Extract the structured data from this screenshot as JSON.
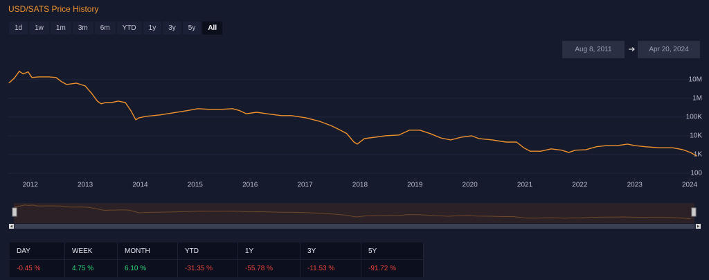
{
  "header": {
    "title": "USD/SATS Price History"
  },
  "range_buttons": [
    {
      "label": "1d",
      "active": false
    },
    {
      "label": "1w",
      "active": false
    },
    {
      "label": "1m",
      "active": false
    },
    {
      "label": "3m",
      "active": false
    },
    {
      "label": "6m",
      "active": false
    },
    {
      "label": "YTD",
      "active": false
    },
    {
      "label": "1y",
      "active": false
    },
    {
      "label": "3y",
      "active": false
    },
    {
      "label": "5y",
      "active": false
    },
    {
      "label": "All",
      "active": true
    }
  ],
  "date_range": {
    "from": "Aug 8, 2011",
    "to": "Apr 20, 2024"
  },
  "chart_data": {
    "type": "line",
    "color": "#f0922b",
    "log_y": true,
    "grid": true,
    "x": [
      2011.61,
      2011.71,
      2011.8,
      2011.87,
      2011.96,
      2012.03,
      2012.15,
      2012.34,
      2012.47,
      2012.57,
      2012.66,
      2012.84,
      2013.0,
      2013.12,
      2013.22,
      2013.29,
      2013.37,
      2013.48,
      2013.6,
      2013.73,
      2013.83,
      2013.92,
      2013.98,
      2014.11,
      2014.36,
      2014.61,
      2014.86,
      2015.05,
      2015.24,
      2015.49,
      2015.68,
      2015.81,
      2015.93,
      2016.12,
      2016.38,
      2016.57,
      2016.75,
      2017.01,
      2017.26,
      2017.49,
      2017.64,
      2017.76,
      2017.89,
      2017.95,
      2018.08,
      2018.27,
      2018.46,
      2018.71,
      2018.9,
      2019.09,
      2019.28,
      2019.47,
      2019.65,
      2019.84,
      2020.03,
      2020.16,
      2020.41,
      2020.66,
      2020.85,
      2020.98,
      2021.1,
      2021.29,
      2021.48,
      2021.67,
      2021.8,
      2021.92,
      2022.11,
      2022.3,
      2022.49,
      2022.68,
      2022.87,
      2023.0,
      2023.19,
      2023.44,
      2023.69,
      2023.88,
      2024.01,
      2024.13
    ],
    "values": [
      6500000,
      12000000,
      28000000,
      20000000,
      26000000,
      13000000,
      14000000,
      14000000,
      13000000,
      7700000,
      5500000,
      6500000,
      4600000,
      1800000,
      710000,
      510000,
      600000,
      600000,
      710000,
      600000,
      220000,
      71000,
      92000,
      110000,
      130000,
      170000,
      220000,
      280000,
      260000,
      260000,
      280000,
      220000,
      150000,
      180000,
      140000,
      120000,
      120000,
      92000,
      60000,
      33000,
      20000,
      13000,
      4600,
      3600,
      7100,
      8400,
      10000,
      11000,
      20000,
      20000,
      13000,
      7700,
      6000,
      8400,
      10000,
      7100,
      6000,
      4600,
      4600,
      2300,
      1500,
      1500,
      2000,
      1700,
      1300,
      1700,
      1800,
      2600,
      3000,
      3000,
      3600,
      3000,
      2600,
      2300,
      2300,
      1800,
      1300,
      840
    ],
    "xlim": [
      2011.6,
      2024.2
    ],
    "xticks": [
      2012,
      2013,
      2014,
      2015,
      2016,
      2017,
      2018,
      2019,
      2020,
      2021,
      2022,
      2023,
      2024
    ],
    "ylim": [
      55,
      70000000
    ],
    "yticks": [
      100,
      {
        "value": 1000,
        "label": "1K"
      },
      {
        "value": 10000,
        "label": "10K"
      },
      {
        "value": 100000,
        "label": "100K"
      },
      {
        "value": 1000000,
        "label": "1M"
      },
      {
        "value": 10000000,
        "label": "10M"
      }
    ]
  },
  "performance_table": {
    "headers": [
      "DAY",
      "WEEK",
      "MONTH",
      "YTD",
      "1Y",
      "3Y",
      "5Y"
    ],
    "values": [
      "-0.45 %",
      "4.75 %",
      "6.10 %",
      "-31.35 %",
      "-55.78 %",
      "-11.53 %",
      "-91.72 %"
    ]
  }
}
